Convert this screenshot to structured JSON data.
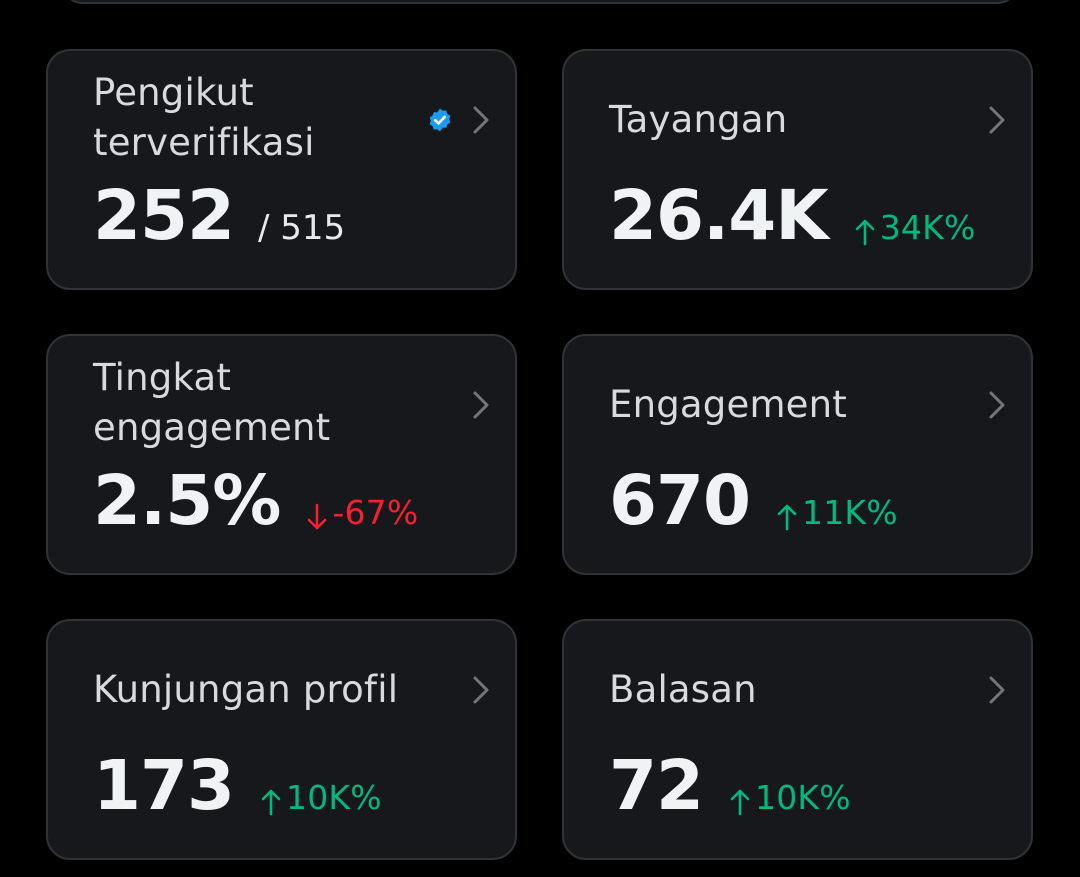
{
  "colors": {
    "background": "#000000",
    "card": "#16181c",
    "border": "#2f3336",
    "positive": "#00ba7c",
    "negative": "#f4212e",
    "verified": "#1d9bf0"
  },
  "cards": [
    {
      "label": "Pengikut terverifikasi",
      "value": "252",
      "suffix": "/ 515",
      "icon": "verified-badge-icon"
    },
    {
      "label": "Tayangan",
      "value": "26.4K",
      "delta": "34K%",
      "trend": "up"
    },
    {
      "label": "Tingkat engagement",
      "value": "2.5%",
      "delta": "-67%",
      "trend": "down"
    },
    {
      "label": "Engagement",
      "value": "670",
      "delta": "11K%",
      "trend": "up"
    },
    {
      "label": "Kunjungan profil",
      "value": "173",
      "delta": "10K%",
      "trend": "up"
    },
    {
      "label": "Balasan",
      "value": "72",
      "delta": "10K%",
      "trend": "up"
    }
  ]
}
